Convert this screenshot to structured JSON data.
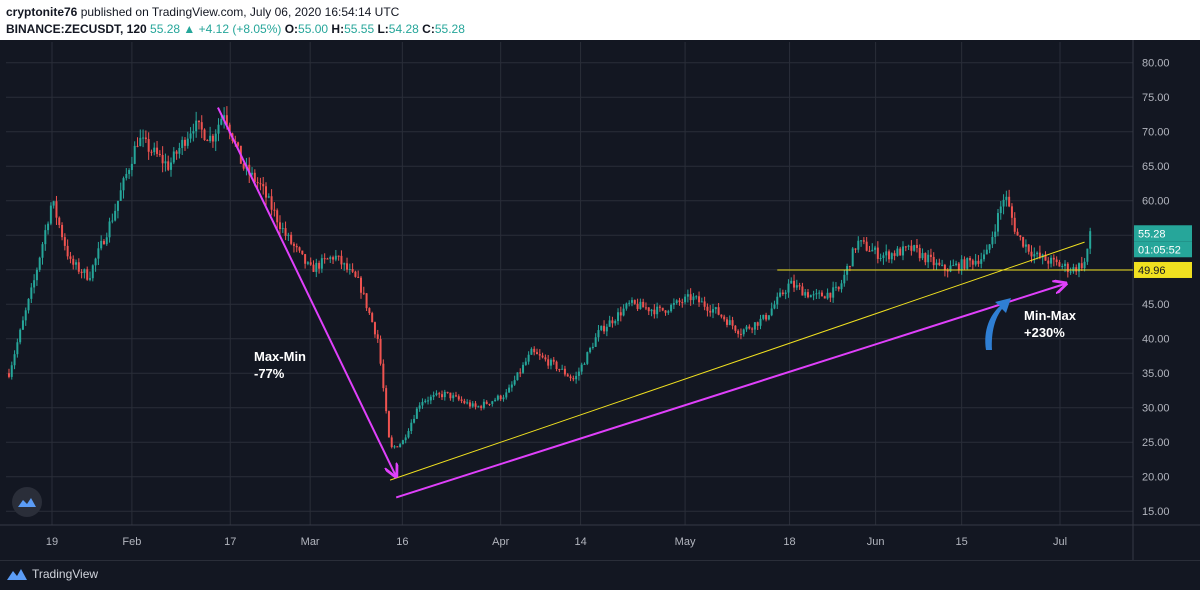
{
  "header": {
    "author": "cryptonite76",
    "published_text": "published on TradingView.com, July 06, 2020 16:54:14 UTC",
    "symbol": "BINANCE:ZECUSDT, 120",
    "last_price": "55.28",
    "change": "▲ +4.12 (+8.05%)",
    "o_label": "O:",
    "o_value": "55.00",
    "h_label": "H:",
    "h_value": "55.55",
    "l_label": "L:",
    "l_value": "54.28",
    "c_label": "C:",
    "c_value": "55.28"
  },
  "footer": {
    "brand": "TradingView"
  },
  "annotations": {
    "max_min_label": "Max-Min",
    "max_min_value": "-77%",
    "min_max_label": "Min-Max",
    "min_max_value": "+230%"
  },
  "price_badges": {
    "current_price": "55.28",
    "countdown": "01:05:52",
    "support_level": "49.96"
  },
  "colors": {
    "background": "#131722",
    "grid": "#2a2e39",
    "up": "#26a69a",
    "down": "#ef5350",
    "magenta_arrow": "#e040fb",
    "yellow_line": "#f0e020",
    "blue_arrow": "#2f7fd4"
  },
  "chart_data": {
    "type": "candlestick",
    "symbol": "BINANCE:ZECUSDT",
    "interval": "120",
    "ylim": [
      13,
      83
    ],
    "y_ticks": [
      "15.00",
      "20.00",
      "25.00",
      "30.00",
      "35.00",
      "40.00",
      "45.00",
      "50.00",
      "55.00",
      "60.00",
      "65.00",
      "70.00",
      "75.00",
      "80.00"
    ],
    "x_ticks": [
      "19",
      "Feb",
      "17",
      "Mar",
      "16",
      "Apr",
      "14",
      "May",
      "18",
      "Jun",
      "15",
      "Jul"
    ],
    "price_path": [
      {
        "x": "2020-01-12",
        "y": 35
      },
      {
        "x": "2020-01-16",
        "y": 48
      },
      {
        "x": "2020-01-19",
        "y": 60
      },
      {
        "x": "2020-01-22",
        "y": 51
      },
      {
        "x": "2020-01-25",
        "y": 49
      },
      {
        "x": "2020-01-29",
        "y": 58
      },
      {
        "x": "2020-02-02",
        "y": 69
      },
      {
        "x": "2020-02-07",
        "y": 65
      },
      {
        "x": "2020-02-11",
        "y": 71
      },
      {
        "x": "2020-02-14",
        "y": 69
      },
      {
        "x": "2020-02-16",
        "y": 73
      },
      {
        "x": "2020-02-19",
        "y": 65
      },
      {
        "x": "2020-02-22",
        "y": 62
      },
      {
        "x": "2020-02-26",
        "y": 55
      },
      {
        "x": "2020-03-01",
        "y": 50
      },
      {
        "x": "2020-03-05",
        "y": 52
      },
      {
        "x": "2020-03-09",
        "y": 48
      },
      {
        "x": "2020-03-12",
        "y": 40
      },
      {
        "x": "2020-03-14",
        "y": 24
      },
      {
        "x": "2020-03-16",
        "y": 25
      },
      {
        "x": "2020-03-19",
        "y": 31
      },
      {
        "x": "2020-03-23",
        "y": 32
      },
      {
        "x": "2020-03-28",
        "y": 30
      },
      {
        "x": "2020-04-02",
        "y": 32
      },
      {
        "x": "2020-04-06",
        "y": 38
      },
      {
        "x": "2020-04-10",
        "y": 36
      },
      {
        "x": "2020-04-13",
        "y": 34
      },
      {
        "x": "2020-04-17",
        "y": 41
      },
      {
        "x": "2020-04-22",
        "y": 45
      },
      {
        "x": "2020-04-27",
        "y": 44
      },
      {
        "x": "2020-05-02",
        "y": 46
      },
      {
        "x": "2020-05-06",
        "y": 44
      },
      {
        "x": "2020-05-10",
        "y": 41
      },
      {
        "x": "2020-05-14",
        "y": 43
      },
      {
        "x": "2020-05-18",
        "y": 48
      },
      {
        "x": "2020-05-22",
        "y": 46
      },
      {
        "x": "2020-05-26",
        "y": 47
      },
      {
        "x": "2020-05-29",
        "y": 54
      },
      {
        "x": "2020-06-02",
        "y": 52
      },
      {
        "x": "2020-06-07",
        "y": 53
      },
      {
        "x": "2020-06-12",
        "y": 50
      },
      {
        "x": "2020-06-16",
        "y": 51
      },
      {
        "x": "2020-06-19",
        "y": 52
      },
      {
        "x": "2020-06-22",
        "y": 61
      },
      {
        "x": "2020-06-24",
        "y": 55
      },
      {
        "x": "2020-06-27",
        "y": 52
      },
      {
        "x": "2020-06-30",
        "y": 51
      },
      {
        "x": "2020-07-03",
        "y": 50
      },
      {
        "x": "2020-07-05",
        "y": 51
      },
      {
        "x": "2020-07-06",
        "y": 55.28
      }
    ],
    "horizontal_support": {
      "y": 49.96,
      "x_start": "2020-05-16",
      "x_end": "2020-07-07"
    },
    "yellow_trendline": [
      {
        "x": "2020-03-14",
        "y": 19.5
      },
      {
        "x": "2020-07-05",
        "y": 54
      }
    ],
    "magenta_drop_arrow": [
      {
        "x": "2020-02-15",
        "y": 73.5
      },
      {
        "x": "2020-03-15",
        "y": 20
      }
    ],
    "magenta_rise_arrow": [
      {
        "x": "2020-03-15",
        "y": 17
      },
      {
        "x": "2020-07-02",
        "y": 48
      }
    ]
  }
}
